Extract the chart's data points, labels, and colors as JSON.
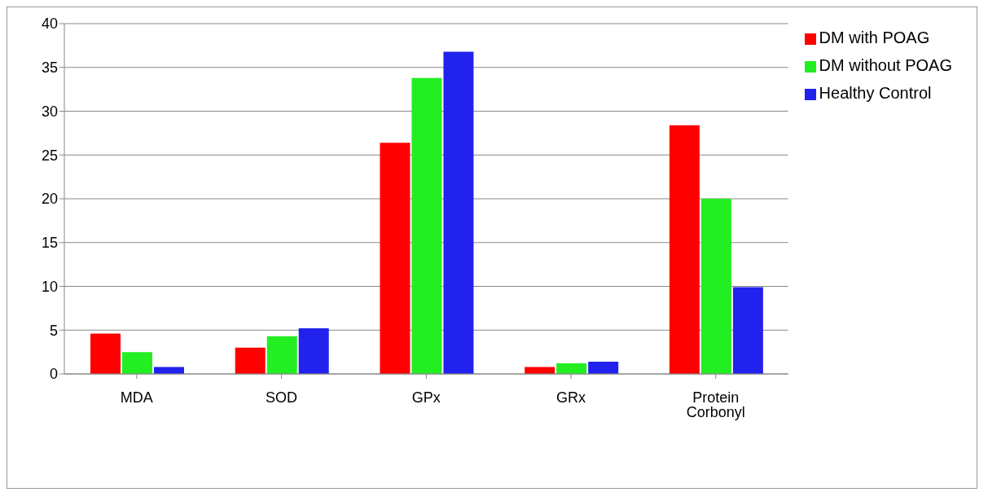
{
  "chart_data": {
    "type": "bar",
    "categories": [
      "MDA",
      "SOD",
      "GPx",
      "GRx",
      "Protein Corbonyl"
    ],
    "series": [
      {
        "name": "DM with POAG",
        "color": "#ff0000",
        "values": [
          4.6,
          3.0,
          26.4,
          0.8,
          28.4
        ]
      },
      {
        "name": "DM without POAG",
        "color": "#22ee22",
        "values": [
          2.5,
          4.3,
          33.8,
          1.2,
          20.0
        ]
      },
      {
        "name": "Healthy Control",
        "color": "#2222ee",
        "values": [
          0.8,
          5.2,
          36.8,
          1.4,
          9.9
        ]
      }
    ],
    "ylim": [
      0,
      40
    ],
    "yticks": [
      0,
      5,
      10,
      15,
      20,
      25,
      30,
      35,
      40
    ],
    "grid": "y",
    "legend": "top right"
  }
}
